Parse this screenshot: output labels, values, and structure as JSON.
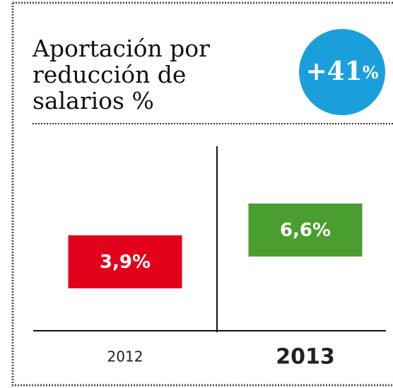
{
  "chart_data": {
    "type": "bar",
    "title": [
      "Aportación por",
      "reducción de",
      "salarios %"
    ],
    "badge": "+41",
    "badge_unit": "%",
    "badge_color": "#1b9fdb",
    "categories": [
      "2012",
      "2013"
    ],
    "values": [
      3.9,
      6.6
    ],
    "value_labels": [
      "3,9%",
      "6,6%"
    ],
    "colors": [
      "#e2001a",
      "#4a9e2f"
    ]
  }
}
